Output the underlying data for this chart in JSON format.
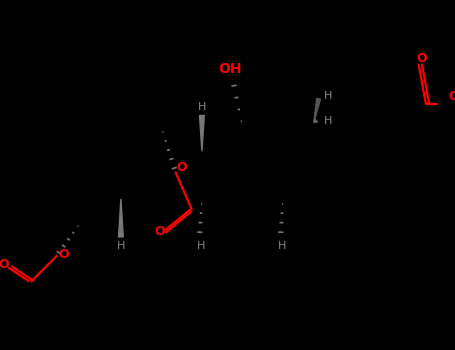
{
  "bg": "#000000",
  "bc": "#000000",
  "rc": "#ff0000",
  "gc": "#888888",
  "figsize": [
    4.55,
    3.5
  ],
  "dpi": 100,
  "xlim": [
    0,
    9.1
  ],
  "ylim": [
    0,
    7.0
  ]
}
